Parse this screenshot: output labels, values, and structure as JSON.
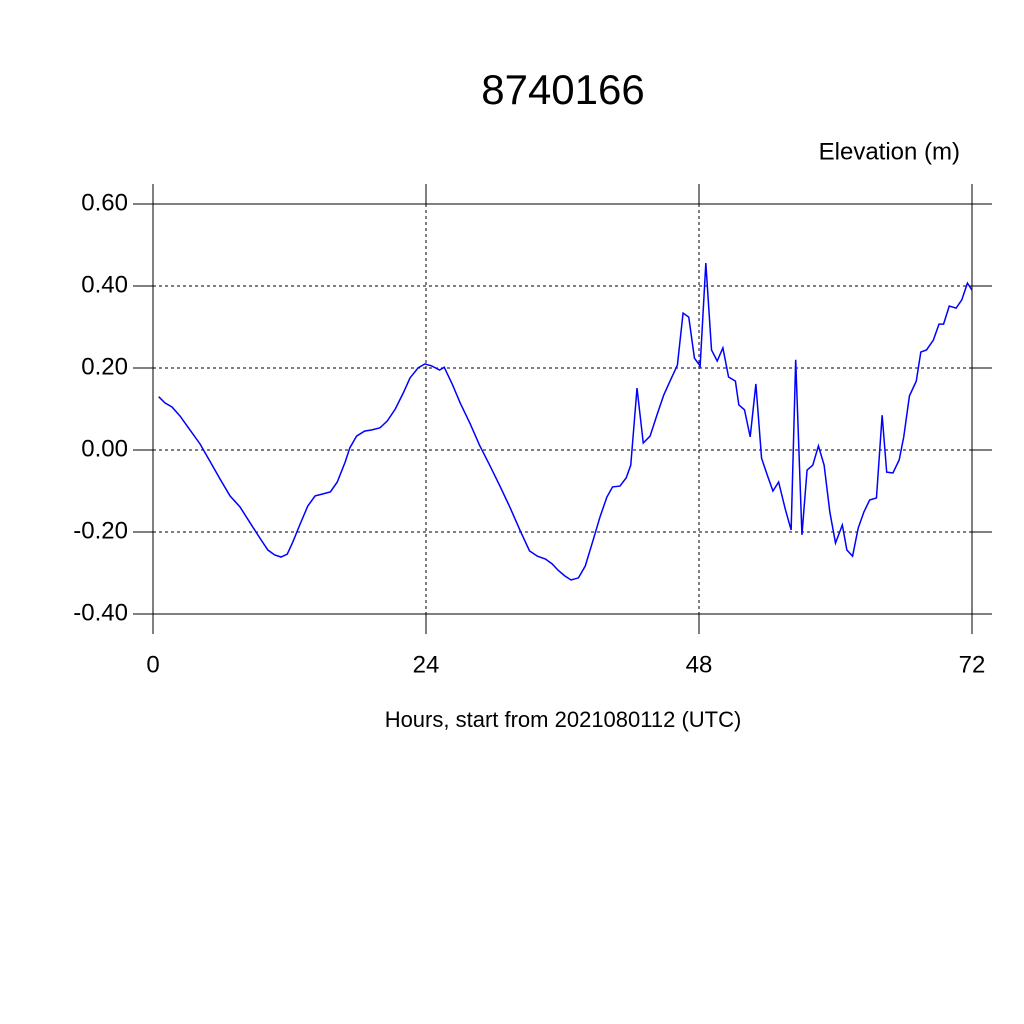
{
  "chart_data": {
    "type": "line",
    "title": "8740166",
    "subtitle": "Elevation (m)",
    "x_label": "Hours, start from 2021080112 (UTC)",
    "x": [
      0.5,
      1.05,
      1.67,
      2.37,
      3.25,
      4.13,
      5.0,
      5.9,
      6.77,
      7.65,
      8.5,
      9.4,
      10.1,
      10.7,
      11.25,
      11.8,
      12.3,
      12.9,
      13.6,
      14.25,
      14.95,
      15.6,
      16.2,
      16.9,
      17.3,
      17.9,
      18.6,
      19.25,
      19.95,
      20.6,
      21.3,
      22.0,
      22.6,
      23.3,
      23.9,
      24.5,
      25.2,
      25.6,
      26.3,
      27.0,
      27.9,
      28.7,
      29.6,
      30.5,
      31.4,
      32.3,
      33.1,
      33.8,
      34.5,
      35.1,
      35.6,
      36.2,
      36.75,
      37.4,
      38.0,
      38.7,
      39.3,
      39.9,
      40.4,
      41.05,
      41.6,
      42.0,
      42.55,
      43.1,
      43.7,
      44.3,
      44.9,
      45.5,
      46.1,
      46.6,
      47.1,
      47.6,
      48.1,
      48.6,
      49.1,
      49.6,
      50.1,
      50.6,
      51.2,
      51.5,
      52.0,
      52.5,
      53.0,
      53.5,
      54.0,
      54.5,
      55.0,
      55.6,
      56.1,
      56.5,
      57.05,
      57.5,
      58.0,
      58.5,
      59.0,
      59.5,
      60.0,
      60.6,
      61.0,
      61.5,
      62.0,
      62.5,
      63.0,
      63.6,
      64.1,
      64.5,
      65.05,
      65.6,
      66.0,
      66.5,
      67.1,
      67.5,
      68.0,
      68.6,
      69.1,
      69.5,
      70.0,
      70.6,
      71.1,
      71.6,
      72.0
    ],
    "series": [
      {
        "name": "Elevation",
        "color": "#0000ff",
        "values": [
          0.13,
          0.115,
          0.105,
          0.083,
          0.049,
          0.015,
          -0.027,
          -0.071,
          -0.112,
          -0.139,
          -0.176,
          -0.215,
          -0.244,
          -0.256,
          -0.261,
          -0.254,
          -0.224,
          -0.183,
          -0.137,
          -0.112,
          -0.107,
          -0.102,
          -0.078,
          -0.029,
          0.005,
          0.034,
          0.046,
          0.049,
          0.054,
          0.071,
          0.1,
          0.139,
          0.176,
          0.2,
          0.21,
          0.205,
          0.195,
          0.202,
          0.161,
          0.115,
          0.063,
          0.012,
          -0.037,
          -0.088,
          -0.141,
          -0.198,
          -0.246,
          -0.259,
          -0.266,
          -0.278,
          -0.293,
          -0.307,
          -0.317,
          -0.312,
          -0.283,
          -0.219,
          -0.163,
          -0.115,
          -0.09,
          -0.088,
          -0.068,
          -0.037,
          0.151,
          0.017,
          0.034,
          0.085,
          0.134,
          0.171,
          0.207,
          0.334,
          0.324,
          0.224,
          0.205,
          0.456,
          0.244,
          0.217,
          0.249,
          0.178,
          0.168,
          0.11,
          0.098,
          0.032,
          0.161,
          -0.02,
          -0.061,
          -0.1,
          -0.078,
          -0.146,
          -0.195,
          0.22,
          -0.207,
          -0.049,
          -0.037,
          0.01,
          -0.037,
          -0.151,
          -0.227,
          -0.183,
          -0.244,
          -0.259,
          -0.19,
          -0.151,
          -0.122,
          -0.117,
          0.085,
          -0.054,
          -0.056,
          -0.024,
          0.032,
          0.132,
          0.168,
          0.239,
          0.244,
          0.268,
          0.307,
          0.307,
          0.351,
          0.346,
          0.366,
          0.407,
          0.39
        ]
      }
    ],
    "xlim": [
      0,
      72
    ],
    "ylim": [
      -0.4,
      0.6
    ],
    "xticks": [
      0,
      24,
      48,
      72
    ],
    "yticks": [
      {
        "value": -0.4,
        "label": "-0.40"
      },
      {
        "value": -0.2,
        "label": "-0.20"
      },
      {
        "value": 0,
        "label": "0.00"
      },
      {
        "value": 0.2,
        "label": "0.20"
      },
      {
        "value": 0.4,
        "label": "0.40"
      },
      {
        "value": 0.6,
        "label": "0.60"
      }
    ],
    "grid": true
  }
}
